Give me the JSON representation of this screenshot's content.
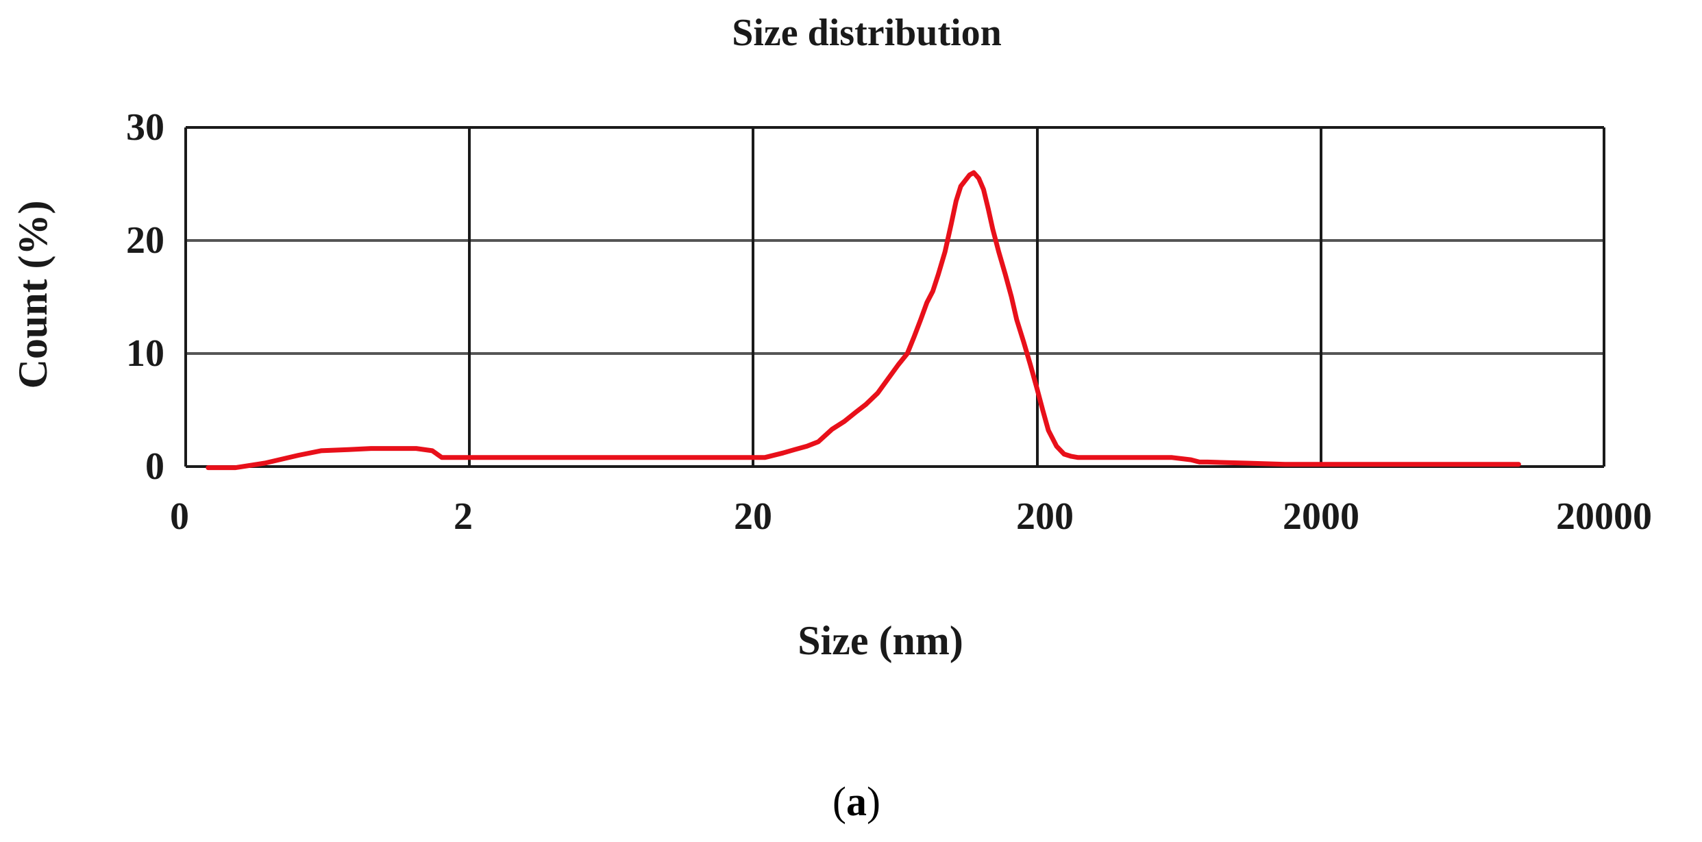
{
  "chart_data": {
    "type": "line",
    "title": "Size distribution",
    "xlabel": "Size (nm)",
    "ylabel": "Count (%)",
    "panel_label": {
      "open": "(",
      "letter": "a",
      "close": ")"
    },
    "x_scale": "log",
    "x_ticks": [
      "0",
      "2",
      "20",
      "200",
      "2000",
      "20000"
    ],
    "y_ticks": [
      0,
      10,
      20,
      30
    ],
    "ylim": [
      0,
      30
    ],
    "grid": true,
    "colors": {
      "series": "#e8101a",
      "grid": "#1a1a1a",
      "gridline_h": "#555555"
    },
    "series": [
      {
        "x": [
          0.24,
          0.3,
          0.38,
          0.5,
          0.6,
          0.75,
          0.9,
          1.1,
          1.3,
          1.48,
          1.6,
          3,
          6,
          10,
          15,
          22,
          25.5,
          28,
          31,
          34,
          38,
          42,
          46,
          50,
          55,
          60,
          65,
          70,
          74,
          78,
          82,
          86,
          90,
          95,
          100,
          104,
          108,
          112,
          116,
          120,
          125,
          130,
          135,
          140,
          147,
          155,
          163,
          170,
          180,
          190,
          200,
          210,
          220,
          235,
          250,
          265,
          280,
          295,
          320,
          360,
          420,
          500,
          600,
          700,
          750,
          800,
          1100,
          1500,
          2000,
          3000,
          5000,
          8000,
          10000
        ],
        "y": [
          -0.1,
          -0.1,
          0.3,
          1.0,
          1.4,
          1.5,
          1.6,
          1.6,
          1.6,
          1.4,
          0.8,
          0.8,
          0.8,
          0.8,
          0.8,
          0.8,
          1.2,
          1.5,
          1.8,
          2.2,
          3.3,
          4.0,
          4.8,
          5.5,
          6.5,
          7.8,
          9.0,
          10.0,
          11.5,
          13.0,
          14.5,
          15.5,
          17.0,
          19.0,
          21.5,
          23.5,
          24.8,
          25.3,
          25.8,
          26.0,
          25.5,
          24.5,
          22.8,
          21.0,
          19.0,
          17.0,
          15.0,
          13.0,
          11.0,
          9.0,
          7.0,
          5.0,
          3.2,
          1.8,
          1.1,
          0.9,
          0.8,
          0.8,
          0.8,
          0.8,
          0.8,
          0.8,
          0.8,
          0.6,
          0.4,
          0.4,
          0.3,
          0.2,
          0.2,
          0.2,
          0.2,
          0.2,
          0.2
        ]
      }
    ]
  }
}
